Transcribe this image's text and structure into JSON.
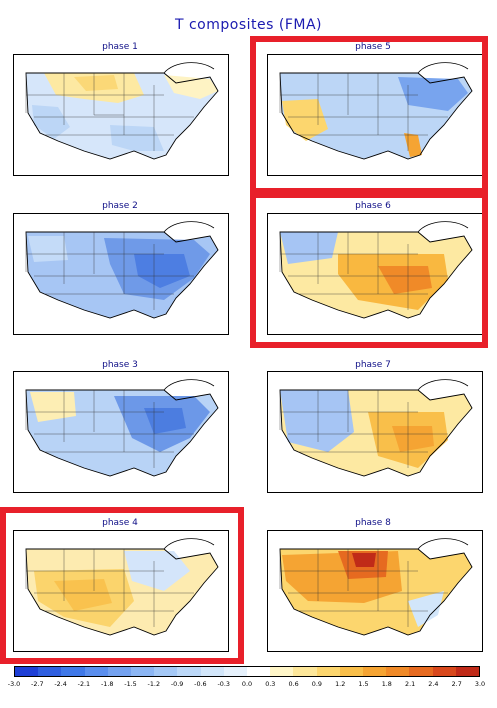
{
  "title": "T composites (FMA)",
  "panels": [
    {
      "label": "phase 1",
      "anomaly": "weak warm north/northeast, cool west/south"
    },
    {
      "label": "phase 2",
      "anomaly": "cool nearly everywhere, strongest east"
    },
    {
      "label": "phase 3",
      "anomaly": "cool east and central, warm northwest"
    },
    {
      "label": "phase 4",
      "anomaly": "warm southwest and southern plains"
    },
    {
      "label": "phase 5",
      "anomaly": "warm southwest and Florida, cool northeast"
    },
    {
      "label": "phase 6",
      "anomaly": "strong warm southeast and central, cool northwest"
    },
    {
      "label": "phase 7",
      "anomaly": "warm southeast, cool west"
    },
    {
      "label": "phase 8",
      "anomaly": "strong warm northern plains and west"
    }
  ],
  "highlighted_panels": [
    "phase 4",
    "phase 5",
    "phase 6"
  ],
  "colorbar": {
    "ticks": [
      "-3.0",
      "-2.7",
      "-2.4",
      "-2.1",
      "-1.8",
      "-1.5",
      "-1.2",
      "-0.9",
      "-0.6",
      "-0.3",
      "0.0",
      "0.3",
      "0.6",
      "0.9",
      "1.2",
      "1.5",
      "1.8",
      "2.1",
      "2.4",
      "2.7",
      "3.0"
    ],
    "colors": [
      "#1e3fd6",
      "#2f5fe0",
      "#3f78e8",
      "#5a8eee",
      "#74a2f0",
      "#8cb6f4",
      "#a4c8f6",
      "#bcd8f8",
      "#d2e6fa",
      "#e6f1fc",
      "#ffffff",
      "#fff6c8",
      "#fde79a",
      "#fcd66e",
      "#f9bf4a",
      "#f5a433",
      "#f08a28",
      "#e66a20",
      "#d8481c",
      "#c02a18"
    ]
  },
  "highlight_color": "#e8202a"
}
